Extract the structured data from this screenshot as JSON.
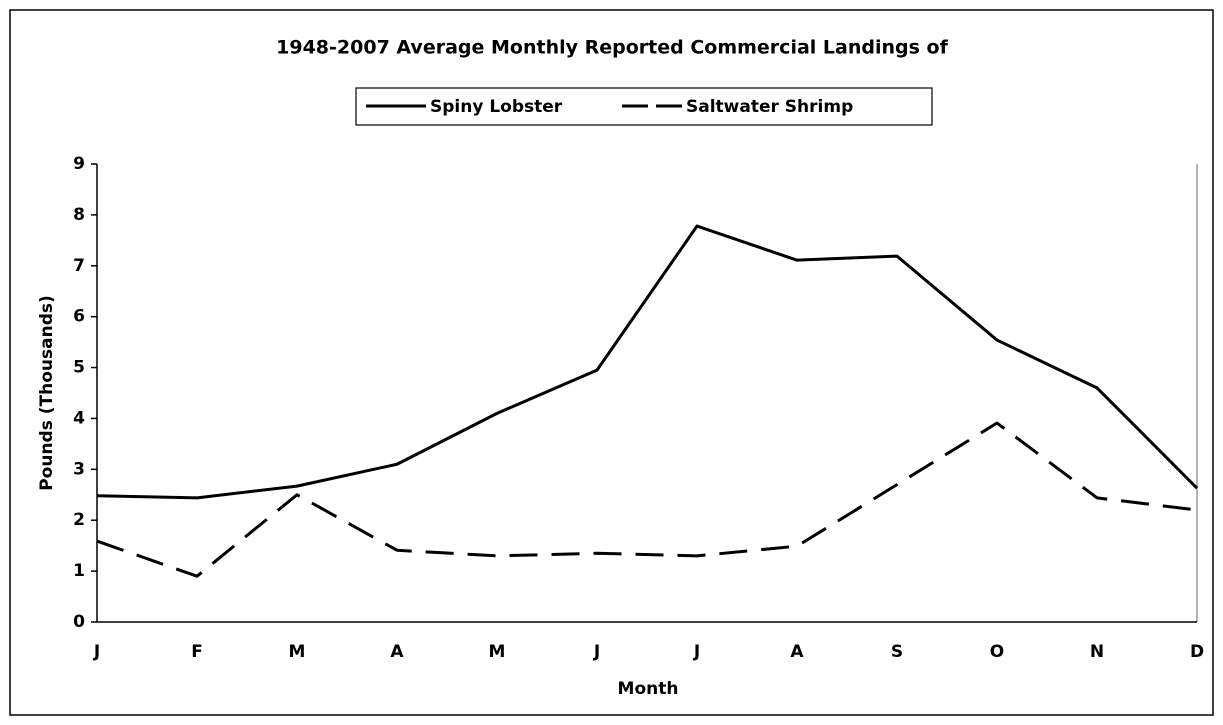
{
  "chart_data": {
    "type": "line",
    "title": "1948-2007 Average Monthly Reported Commercial Landings of",
    "x_label": "Month",
    "y_label": "Pounds (Thousands)",
    "categories": [
      "J",
      "F",
      "M",
      "A",
      "M",
      "J",
      "J",
      "A",
      "S",
      "O",
      "N",
      "D"
    ],
    "series": [
      {
        "name": "Spiny Lobster",
        "color": "#000000",
        "dash": "solid",
        "values": [
          2.48,
          2.44,
          2.67,
          3.1,
          4.1,
          4.95,
          7.78,
          7.11,
          7.19,
          5.54,
          4.6,
          2.63
        ]
      },
      {
        "name": "Saltwater Shrimp",
        "color": "#000000",
        "dash": "dashed",
        "values": [
          1.59,
          0.9,
          2.5,
          1.41,
          1.3,
          1.35,
          1.3,
          1.49,
          2.7,
          3.91,
          2.44,
          2.2
        ]
      }
    ],
    "ylim": [
      0,
      9
    ],
    "yticks": [
      0,
      1,
      2,
      3,
      4,
      5,
      6,
      7,
      8,
      9
    ],
    "grid": false,
    "legend": "top"
  }
}
